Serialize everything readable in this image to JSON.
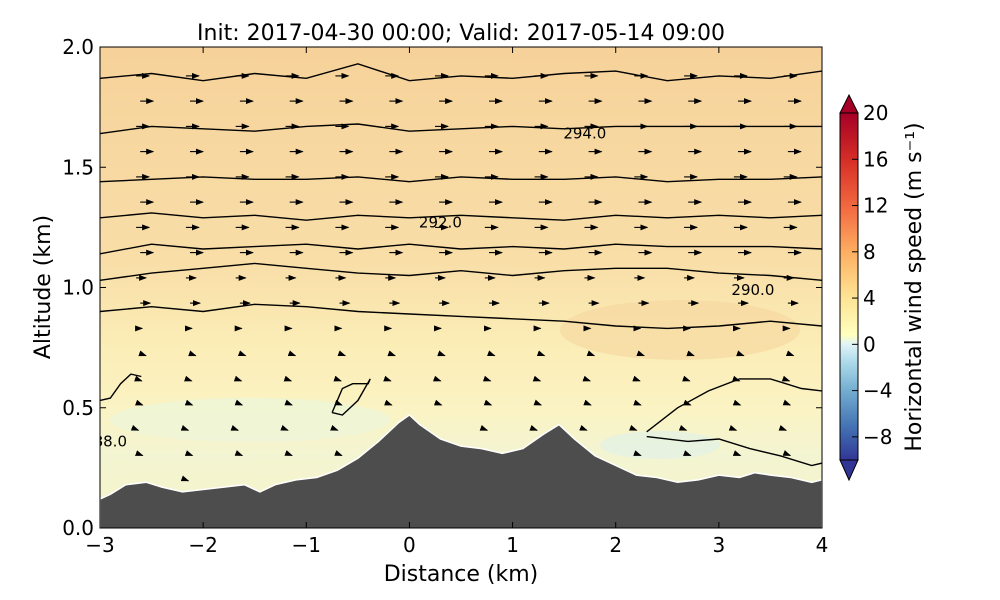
{
  "chart_data": {
    "type": "contour",
    "title": "Init: 2017-04-30 00:00; Valid: 2017-05-14 09:00",
    "xlabel": "Distance (km)",
    "ylabel": "Altitude (km)",
    "xlim": [
      -3,
      4
    ],
    "ylim": [
      0.0,
      2.0
    ],
    "xticks": [
      -3,
      -2,
      -1,
      0,
      1,
      2,
      3,
      4
    ],
    "xtick_labels": [
      "−3",
      "−2",
      "−1",
      "0",
      "1",
      "2",
      "3",
      "4"
    ],
    "yticks": [
      0.0,
      0.5,
      1.0,
      1.5,
      2.0
    ],
    "ytick_labels": [
      "0.0",
      "0.5",
      "1.0",
      "1.5",
      "2.0"
    ],
    "colorbar": {
      "label": "Horizontal wind speed (m s⁻¹)",
      "range": [
        -10,
        20
      ],
      "ticks": [
        -8,
        -4,
        0,
        4,
        8,
        12,
        16,
        20
      ],
      "tick_labels": [
        "−8",
        "−4",
        "0",
        "4",
        "8",
        "12",
        "16",
        "20"
      ],
      "extend": "both"
    },
    "contour_labels": [
      {
        "text": "294.0",
        "x": 1.7,
        "y": 1.64
      },
      {
        "text": "292.0",
        "x": 0.3,
        "y": 1.27
      },
      {
        "text": "290.0",
        "x": 3.33,
        "y": 0.99
      },
      {
        "text": "88.0",
        "x": -2.9,
        "y": 0.36
      }
    ],
    "terrain": {
      "x": [
        -3.0,
        -2.9,
        -2.75,
        -2.55,
        -2.4,
        -2.2,
        -2.0,
        -1.8,
        -1.6,
        -1.45,
        -1.3,
        -1.1,
        -0.9,
        -0.7,
        -0.5,
        -0.3,
        -0.1,
        0.0,
        0.1,
        0.3,
        0.5,
        0.7,
        0.9,
        1.1,
        1.3,
        1.45,
        1.6,
        1.8,
        2.0,
        2.2,
        2.4,
        2.6,
        2.8,
        3.0,
        3.2,
        3.35,
        3.5,
        3.7,
        3.9,
        4.0
      ],
      "y": [
        0.12,
        0.14,
        0.18,
        0.19,
        0.17,
        0.15,
        0.16,
        0.17,
        0.18,
        0.15,
        0.18,
        0.2,
        0.21,
        0.24,
        0.29,
        0.36,
        0.44,
        0.47,
        0.43,
        0.37,
        0.34,
        0.33,
        0.31,
        0.33,
        0.39,
        0.43,
        0.37,
        0.3,
        0.26,
        0.22,
        0.21,
        0.19,
        0.2,
        0.22,
        0.21,
        0.23,
        0.22,
        0.21,
        0.19,
        0.2
      ]
    },
    "theta_contours": [
      {
        "x": [
          -3.0,
          -2.5,
          -2.0,
          -1.5,
          -1.0,
          -0.5,
          0.0,
          0.5,
          1.0,
          1.5,
          2.0,
          2.5,
          3.0,
          3.5,
          4.0
        ],
        "y": [
          1.87,
          1.89,
          1.86,
          1.89,
          1.87,
          1.93,
          1.86,
          1.88,
          1.87,
          1.89,
          1.9,
          1.86,
          1.88,
          1.87,
          1.9
        ]
      },
      {
        "x": [
          -3.0,
          -2.5,
          -2.0,
          -1.5,
          -1.0,
          -0.5,
          0.0,
          0.5,
          1.0,
          1.5,
          2.0,
          2.5,
          3.0,
          3.5,
          4.0
        ],
        "y": [
          1.64,
          1.67,
          1.66,
          1.65,
          1.67,
          1.68,
          1.65,
          1.66,
          1.67,
          1.66,
          1.67,
          1.67,
          1.67,
          1.67,
          1.67
        ]
      },
      {
        "x": [
          -3.0,
          -2.5,
          -2.0,
          -1.5,
          -1.0,
          -0.5,
          0.0,
          0.5,
          1.0,
          1.5,
          2.0,
          2.5,
          3.0,
          3.5,
          4.0
        ],
        "y": [
          1.44,
          1.45,
          1.46,
          1.45,
          1.45,
          1.46,
          1.44,
          1.46,
          1.45,
          1.45,
          1.46,
          1.44,
          1.45,
          1.45,
          1.46
        ]
      },
      {
        "x": [
          -3.0,
          -2.5,
          -2.0,
          -1.5,
          -1.0,
          -0.5,
          0.0,
          0.5,
          1.0,
          1.5,
          2.0,
          2.5,
          3.0,
          3.5,
          4.0
        ],
        "y": [
          1.29,
          1.31,
          1.29,
          1.3,
          1.28,
          1.3,
          1.29,
          1.3,
          1.29,
          1.28,
          1.3,
          1.29,
          1.3,
          1.29,
          1.3
        ]
      },
      {
        "x": [
          -3.0,
          -2.5,
          -2.0,
          -1.5,
          -1.0,
          -0.5,
          0.0,
          0.5,
          1.0,
          1.5,
          2.0,
          2.5,
          3.0,
          3.5,
          4.0
        ],
        "y": [
          1.14,
          1.18,
          1.16,
          1.17,
          1.18,
          1.16,
          1.18,
          1.16,
          1.17,
          1.16,
          1.18,
          1.17,
          1.17,
          1.17,
          1.16
        ]
      },
      {
        "x": [
          -3.0,
          -2.5,
          -2.0,
          -1.5,
          -1.0,
          -0.5,
          0.0,
          0.5,
          1.0,
          1.5,
          2.0,
          2.5,
          3.0,
          3.5,
          4.0
        ],
        "y": [
          1.03,
          1.06,
          1.08,
          1.1,
          1.08,
          1.06,
          1.05,
          1.07,
          1.05,
          1.07,
          1.08,
          1.08,
          1.06,
          1.05,
          1.03
        ]
      },
      {
        "x": [
          -3.0,
          -2.5,
          -2.0,
          -1.5,
          -1.0,
          -0.5,
          0.0,
          0.5,
          1.0,
          1.5,
          2.0,
          2.5,
          3.0,
          3.5,
          4.0
        ],
        "y": [
          0.9,
          0.92,
          0.9,
          0.93,
          0.92,
          0.9,
          0.89,
          0.88,
          0.87,
          0.86,
          0.84,
          0.83,
          0.84,
          0.86,
          0.84
        ]
      },
      {
        "x": [
          -3.0,
          -2.9,
          -2.8,
          -2.7,
          -2.6
        ],
        "y": [
          0.53,
          0.54,
          0.6,
          0.64,
          0.63
        ]
      },
      {
        "x": [
          -0.75,
          -0.65,
          -0.55,
          -0.4,
          -0.38,
          -0.5,
          -0.65,
          -0.75
        ],
        "y": [
          0.48,
          0.58,
          0.6,
          0.6,
          0.62,
          0.53,
          0.47,
          0.48
        ]
      },
      {
        "x": [
          2.3,
          2.6,
          2.9,
          3.2,
          3.5,
          3.8,
          4.0
        ],
        "y": [
          0.4,
          0.5,
          0.57,
          0.62,
          0.62,
          0.58,
          0.57
        ]
      },
      {
        "x": [
          2.3,
          2.7,
          3.0,
          3.3,
          3.6,
          3.9,
          4.0
        ],
        "y": [
          0.38,
          0.36,
          0.37,
          0.33,
          0.3,
          0.26,
          0.27
        ]
      }
    ]
  }
}
